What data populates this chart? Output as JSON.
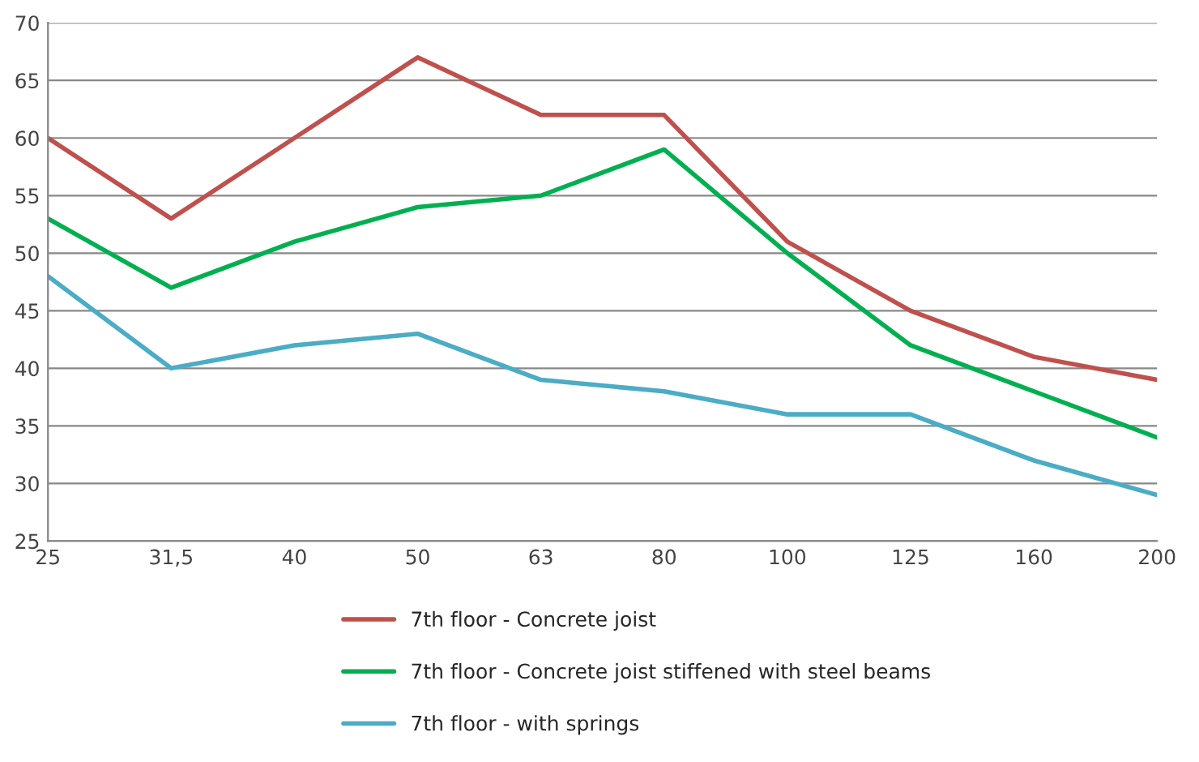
{
  "chart_data": {
    "type": "line",
    "categories": [
      "25",
      "31,5",
      "40",
      "50",
      "63",
      "80",
      "100",
      "125",
      "160",
      "200"
    ],
    "series": [
      {
        "name": "7th floor - Concrete joist",
        "color": "#c0504d",
        "values": [
          60,
          53,
          60,
          67,
          62,
          62,
          51,
          45,
          41,
          39
        ]
      },
      {
        "name": "7th floor - Concrete joist stiffened with steel beams",
        "color": "#00b050",
        "values": [
          53,
          47,
          51,
          54,
          55,
          59,
          50,
          42,
          38,
          34
        ]
      },
      {
        "name": "7th floor - with springs",
        "color": "#4bacc6",
        "values": [
          48,
          40,
          42,
          43,
          39,
          38,
          36,
          36,
          32,
          29
        ]
      }
    ],
    "ylim": [
      25,
      70
    ],
    "yticks": [
      25,
      30,
      35,
      40,
      45,
      50,
      55,
      60,
      65,
      70
    ],
    "grid": "y",
    "legend": "bottom",
    "marker": "none",
    "line_style": "solid"
  }
}
